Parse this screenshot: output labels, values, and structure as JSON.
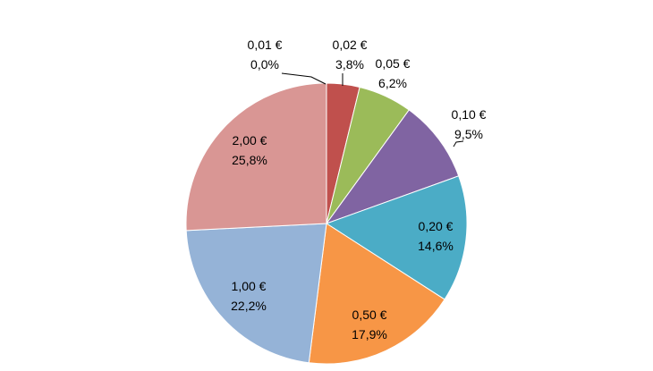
{
  "chart_data": {
    "type": "pie",
    "title": "",
    "start_angle_deg": 0,
    "direction": "clockwise",
    "legend": "none",
    "slices": [
      {
        "category": "0,01 €",
        "value": 0.0,
        "label": "0,0%",
        "color": "#4F81BD"
      },
      {
        "category": "0,02 €",
        "value": 3.8,
        "label": "3,8%",
        "color": "#C0504D"
      },
      {
        "category": "0,05 €",
        "value": 6.2,
        "label": "6,2%",
        "color": "#9BBB59"
      },
      {
        "category": "0,10 €",
        "value": 9.5,
        "label": "9,5%",
        "color": "#8064A2"
      },
      {
        "category": "0,20 €",
        "value": 14.6,
        "label": "14,6%",
        "color": "#4BACC6"
      },
      {
        "category": "0,50 €",
        "value": 17.9,
        "label": "17,9%",
        "color": "#F79646"
      },
      {
        "category": "1,00 €",
        "value": 22.2,
        "label": "22,2%",
        "color": "#95B3D7"
      },
      {
        "category": "2,00 €",
        "value": 25.8,
        "label": "25,8%",
        "color": "#D99694"
      }
    ]
  }
}
